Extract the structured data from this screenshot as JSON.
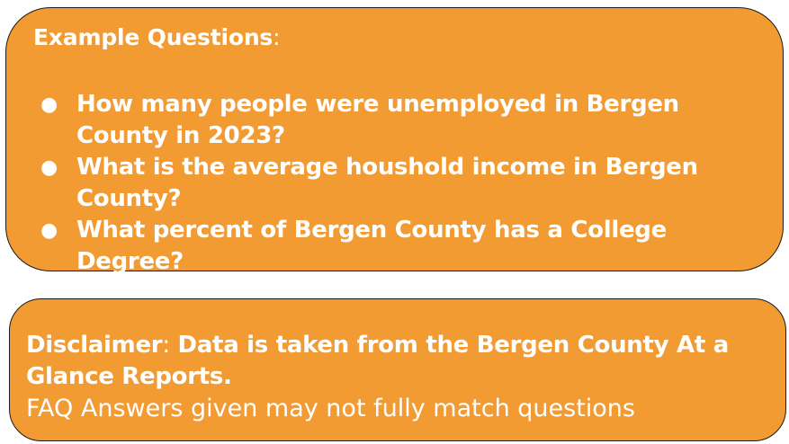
{
  "examples": {
    "title": "Example Questions",
    "title_colon": ":",
    "bullet": "●",
    "questions": [
      "How many people were unemployed in Bergen County in 2023?",
      "What is the average houshold income in Bergen County?",
      "What percent of Bergen County has a College Degree?"
    ]
  },
  "disclaimer": {
    "label": "Disclaimer",
    "label_colon": ":",
    "text": " Data is taken from the Bergen County At a Glance Reports.",
    "note": "FAQ Answers given may not fully match questions"
  },
  "colors": {
    "box_fill": "#F29B33",
    "border": "#1a1a1a",
    "text": "#ffffff"
  }
}
